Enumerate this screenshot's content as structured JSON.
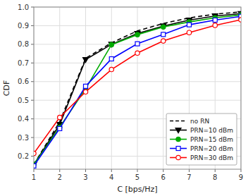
{
  "chart_data": {
    "type": "line",
    "title": "",
    "x_label": "C [bps/Hz]",
    "y_label": "CDF",
    "x": [
      1,
      2,
      3,
      4,
      5,
      6,
      7,
      8,
      9
    ],
    "xlim": [
      1,
      9
    ],
    "ylim": [
      0.13,
      1.0
    ],
    "xticks": [
      1,
      2,
      3,
      4,
      5,
      6,
      7,
      8,
      9
    ],
    "yticks": [
      0.2,
      0.3,
      0.4,
      0.5,
      0.6,
      0.7,
      0.8,
      0.9,
      {
        "value": 1.0,
        "label": "1.0"
      }
    ],
    "grid": true,
    "legend": "lower right",
    "series": [
      {
        "name": "no RN",
        "color": "#000000",
        "line_style": "dashed",
        "marker": "none",
        "values": [
          0.155,
          0.385,
          0.725,
          0.808,
          0.872,
          0.912,
          0.942,
          0.962,
          0.974
        ]
      },
      {
        "name": "PRN=10 dBm",
        "color": "#000000",
        "line_style": "solid",
        "marker": "triangle-down",
        "values": [
          0.155,
          0.37,
          0.718,
          0.8,
          0.858,
          0.898,
          0.93,
          0.952,
          0.965
        ]
      },
      {
        "name": "PRN=15 dBm",
        "color": "#00aa00",
        "line_style": "solid",
        "marker": "circle",
        "values": [
          0.155,
          0.355,
          0.562,
          0.798,
          0.852,
          0.893,
          0.92,
          0.942,
          0.958
        ]
      },
      {
        "name": "PRN=20 dBm",
        "color": "#0000ff",
        "line_style": "solid",
        "marker": "square-open",
        "values": [
          0.148,
          0.348,
          0.575,
          0.722,
          0.803,
          0.853,
          0.905,
          0.93,
          0.95
        ]
      },
      {
        "name": "PRN=30 dBm",
        "color": "#ff0000",
        "line_style": "solid",
        "marker": "circle-open",
        "values": [
          0.215,
          0.408,
          0.545,
          0.665,
          0.753,
          0.818,
          0.863,
          0.902,
          0.932
        ]
      }
    ]
  }
}
